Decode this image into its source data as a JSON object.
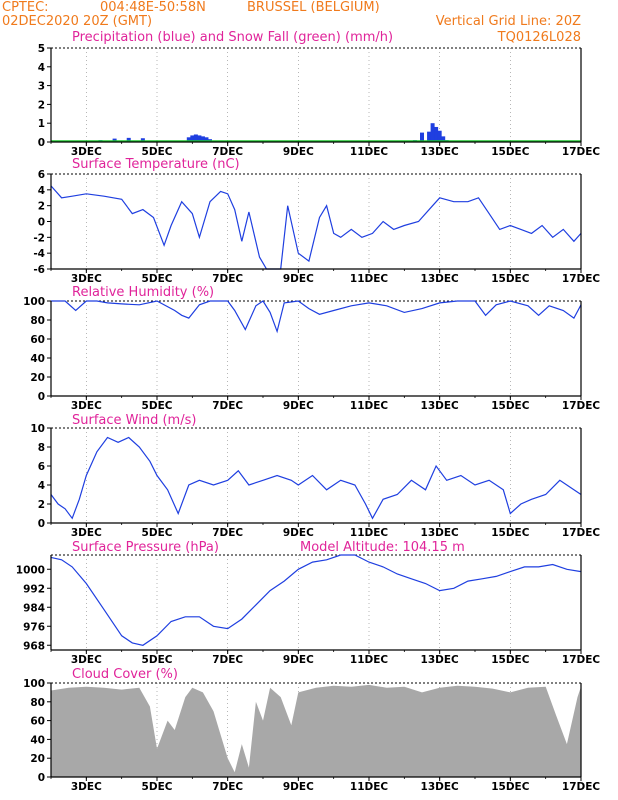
{
  "header": {
    "source": "CPTEC:",
    "coords": "004:48E-50:58N",
    "station": "BRUSSEL (BELGIUM)",
    "date": "02DEC2020 20Z (GMT)",
    "grid_note": "Vertical Grid Line: 20Z",
    "run_code": "TQ0126L028"
  },
  "x_axis": {
    "labels": [
      "3DEC",
      "5DEC",
      "7DEC",
      "9DEC",
      "11DEC",
      "13DEC",
      "15DEC",
      "17DEC"
    ],
    "label_days": [
      3,
      5,
      7,
      9,
      11,
      13,
      15,
      17
    ],
    "start_day": 2.0,
    "end_day": 17.0
  },
  "colors": {
    "header": "#f07a1c",
    "panel_title": "#e0249a",
    "line": "#1f3fe0",
    "precip": "#1f3fe0",
    "snow": "#19c62a",
    "cloud": "#a8a8a8",
    "grid": "#888888"
  },
  "chart_data": [
    {
      "id": "precip",
      "type": "bar",
      "title": "Precipitation (blue) and Snow Fall (green) (mm/h)",
      "ylim": [
        0,
        5
      ],
      "yticks": [
        0,
        1,
        2,
        3,
        4,
        5
      ],
      "series": [
        {
          "x": [
            3.0,
            3.4,
            3.8,
            4.2,
            4.6,
            5.4,
            5.9,
            6.0,
            6.1,
            6.2,
            6.3,
            6.4,
            6.5,
            6.8,
            8.0,
            9.5,
            10.5,
            12.3,
            12.5,
            12.7,
            12.8,
            12.9,
            13.0,
            13.1,
            13.2,
            14.5
          ],
          "values": [
            0.03,
            0.1,
            0.18,
            0.22,
            0.2,
            0.02,
            0.25,
            0.35,
            0.4,
            0.35,
            0.3,
            0.25,
            0.15,
            0.03,
            0.02,
            0.02,
            0.02,
            0.1,
            0.5,
            0.55,
            1.0,
            0.8,
            0.6,
            0.3,
            0.1,
            0.03
          ]
        }
      ]
    },
    {
      "id": "temp",
      "type": "line",
      "title": "Surface Temperature (nC)",
      "ylim": [
        -6,
        6
      ],
      "yticks": [
        -6,
        -4,
        -2,
        0,
        2,
        4,
        6
      ],
      "x": [
        2.0,
        2.3,
        2.6,
        3.0,
        3.5,
        4.0,
        4.3,
        4.6,
        4.9,
        5.2,
        5.4,
        5.7,
        6.0,
        6.2,
        6.5,
        6.8,
        7.0,
        7.2,
        7.4,
        7.6,
        7.9,
        8.1,
        8.3,
        8.5,
        8.7,
        9.0,
        9.3,
        9.6,
        9.8,
        10.0,
        10.2,
        10.5,
        10.8,
        11.1,
        11.4,
        11.7,
        12.0,
        12.4,
        12.8,
        13.0,
        13.4,
        13.8,
        14.1,
        14.4,
        14.7,
        15.0,
        15.3,
        15.6,
        15.9,
        16.2,
        16.5,
        16.8,
        17.0
      ],
      "values": [
        4.5,
        3.0,
        3.2,
        3.5,
        3.2,
        2.8,
        1.0,
        1.5,
        0.5,
        -3.0,
        -0.5,
        2.5,
        1.0,
        -2.0,
        2.5,
        3.8,
        3.5,
        1.5,
        -2.5,
        1.2,
        -4.5,
        -6.0,
        -6.0,
        -6.0,
        2.0,
        -4.0,
        -5.0,
        0.5,
        2.0,
        -1.5,
        -2.0,
        -1.0,
        -2.0,
        -1.5,
        0.0,
        -1.0,
        -0.5,
        0.0,
        2.0,
        3.0,
        2.5,
        2.5,
        3.0,
        1.0,
        -1.0,
        -0.5,
        -1.0,
        -1.5,
        -0.5,
        -2.0,
        -1.0,
        -2.5,
        -1.5
      ]
    },
    {
      "id": "rh",
      "type": "line",
      "title": "Relative Humidity (%)",
      "ylim": [
        0,
        100
      ],
      "yticks": [
        0,
        20,
        40,
        60,
        80,
        100
      ],
      "x": [
        2.0,
        2.4,
        2.7,
        3.0,
        3.3,
        3.6,
        4.0,
        4.5,
        5.0,
        5.5,
        5.7,
        5.9,
        6.2,
        6.5,
        7.0,
        7.2,
        7.5,
        7.8,
        8.0,
        8.2,
        8.4,
        8.6,
        9.0,
        9.3,
        9.6,
        10.0,
        10.5,
        11.0,
        11.5,
        12.0,
        12.5,
        13.0,
        13.5,
        14.0,
        14.3,
        14.6,
        15.0,
        15.5,
        15.8,
        16.1,
        16.5,
        16.8,
        17.0
      ],
      "values": [
        100,
        100,
        90,
        100,
        100,
        98,
        97,
        96,
        100,
        90,
        85,
        82,
        96,
        100,
        100,
        90,
        70,
        95,
        100,
        88,
        68,
        98,
        100,
        92,
        86,
        90,
        95,
        98,
        95,
        88,
        92,
        98,
        100,
        100,
        85,
        96,
        100,
        95,
        85,
        95,
        90,
        82,
        96
      ]
    },
    {
      "id": "wind",
      "type": "line",
      "title": "Surface Wind (m/s)",
      "ylim": [
        0,
        10
      ],
      "yticks": [
        0,
        2,
        4,
        6,
        8,
        10
      ],
      "x": [
        2.0,
        2.2,
        2.4,
        2.6,
        2.8,
        3.0,
        3.3,
        3.6,
        3.9,
        4.2,
        4.5,
        4.8,
        5.0,
        5.3,
        5.6,
        5.9,
        6.2,
        6.6,
        7.0,
        7.3,
        7.6,
        8.0,
        8.4,
        8.8,
        9.0,
        9.4,
        9.8,
        10.2,
        10.6,
        10.9,
        11.1,
        11.4,
        11.8,
        12.2,
        12.6,
        12.9,
        13.2,
        13.6,
        14.0,
        14.4,
        14.8,
        15.0,
        15.3,
        15.6,
        16.0,
        16.4,
        16.8,
        17.0
      ],
      "values": [
        3.0,
        2.0,
        1.5,
        0.5,
        2.5,
        5.0,
        7.5,
        9.0,
        8.5,
        9.0,
        8.0,
        6.5,
        5.0,
        3.5,
        1.0,
        4.0,
        4.5,
        4.0,
        4.5,
        5.5,
        4.0,
        4.5,
        5.0,
        4.5,
        4.0,
        5.0,
        3.5,
        4.5,
        4.0,
        2.0,
        0.5,
        2.5,
        3.0,
        4.5,
        3.5,
        6.0,
        4.5,
        5.0,
        4.0,
        4.5,
        3.5,
        1.0,
        2.0,
        2.5,
        3.0,
        4.5,
        3.5,
        3.0
      ]
    },
    {
      "id": "pressure",
      "type": "line",
      "title": "Surface Pressure (hPa)",
      "annotation": "Model Altitude: 104.15 m",
      "ylim": [
        966,
        1006
      ],
      "yticks": [
        968,
        976,
        984,
        992,
        1000
      ],
      "x": [
        2.0,
        2.3,
        2.6,
        3.0,
        3.5,
        4.0,
        4.3,
        4.6,
        5.0,
        5.4,
        5.8,
        6.2,
        6.6,
        7.0,
        7.4,
        7.8,
        8.2,
        8.6,
        9.0,
        9.4,
        9.8,
        10.2,
        10.6,
        11.0,
        11.4,
        11.8,
        12.2,
        12.6,
        13.0,
        13.4,
        13.8,
        14.2,
        14.6,
        15.0,
        15.4,
        15.8,
        16.2,
        16.6,
        17.0
      ],
      "values": [
        1005,
        1004,
        1001,
        994,
        983,
        972,
        969,
        968,
        972,
        978,
        980,
        980,
        976,
        975,
        979,
        985,
        991,
        995,
        1000,
        1003,
        1004,
        1006,
        1006,
        1003,
        1001,
        998,
        996,
        994,
        991,
        992,
        995,
        996,
        997,
        999,
        1001,
        1001,
        1002,
        1000,
        999
      ]
    },
    {
      "id": "cloud",
      "type": "area",
      "title": "Cloud Cover (%)",
      "ylim": [
        0,
        100
      ],
      "yticks": [
        0,
        20,
        40,
        60,
        80,
        100
      ],
      "x": [
        2.0,
        2.5,
        3.0,
        3.5,
        4.0,
        4.5,
        4.8,
        5.0,
        5.3,
        5.5,
        5.8,
        6.0,
        6.3,
        6.6,
        6.8,
        7.0,
        7.2,
        7.4,
        7.6,
        7.8,
        8.0,
        8.2,
        8.5,
        8.8,
        9.0,
        9.5,
        10.0,
        10.5,
        11.0,
        11.5,
        12.0,
        12.5,
        13.0,
        13.5,
        14.0,
        14.5,
        15.0,
        15.5,
        16.0,
        16.3,
        16.6,
        16.9,
        17.0
      ],
      "values": [
        92,
        95,
        96,
        95,
        93,
        95,
        75,
        30,
        60,
        50,
        85,
        95,
        90,
        70,
        45,
        20,
        5,
        35,
        10,
        80,
        60,
        95,
        85,
        55,
        90,
        95,
        97,
        96,
        98,
        95,
        96,
        90,
        95,
        97,
        96,
        94,
        90,
        95,
        96,
        65,
        35,
        85,
        96
      ]
    }
  ]
}
